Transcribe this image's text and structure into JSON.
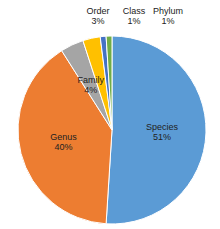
{
  "chart_data": {
    "type": "pie",
    "categories": [
      "Species",
      "Genus",
      "Family",
      "Order",
      "Class",
      "Phylum"
    ],
    "values": [
      51,
      40,
      4,
      3,
      1,
      1
    ],
    "value_labels": [
      "51%",
      "40%",
      "4%",
      "3%",
      "1%",
      "1%"
    ],
    "colors": [
      "#5b9bd5",
      "#ed7d31",
      "#a5a5a5",
      "#ffc000",
      "#4472c4",
      "#70ad47"
    ],
    "data_labels": true
  }
}
